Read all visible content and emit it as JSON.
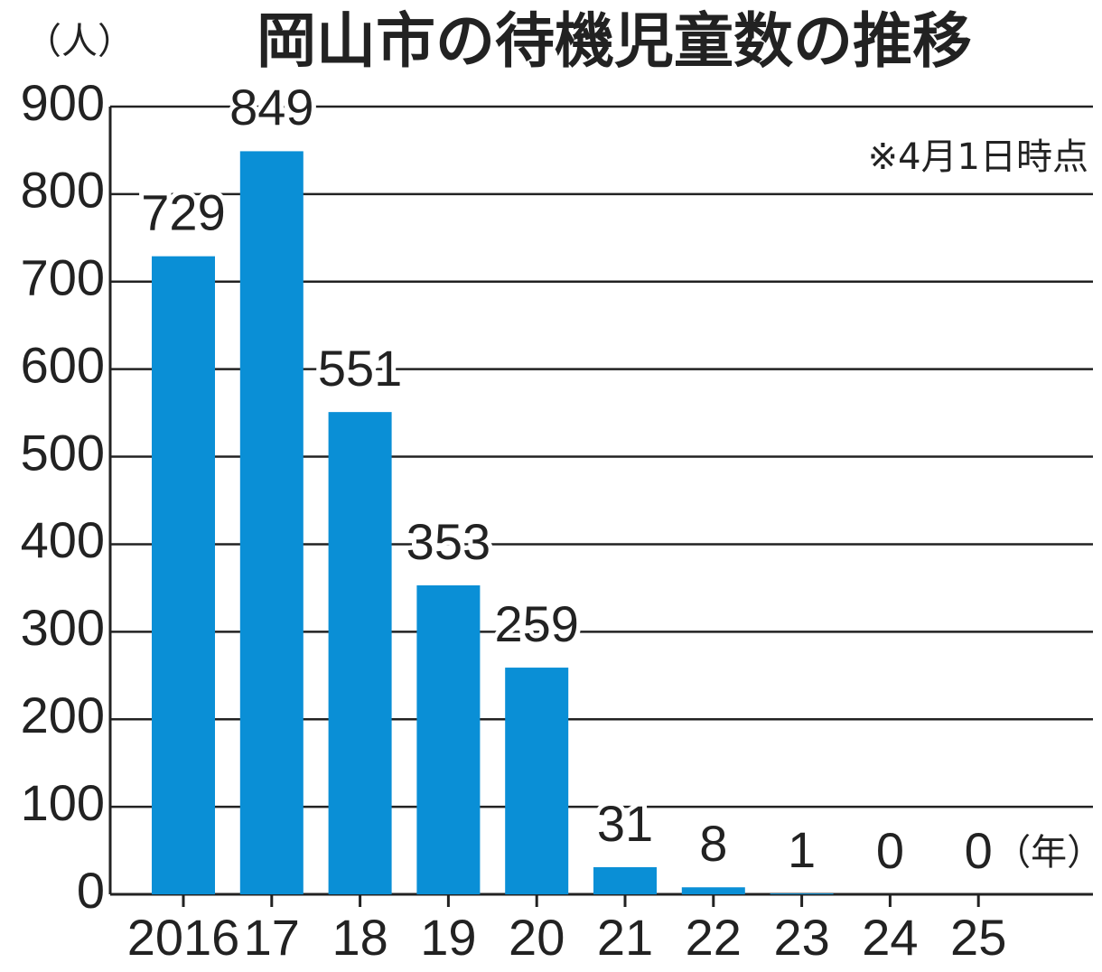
{
  "chart_data": {
    "type": "bar",
    "title": "岡山市の待機児童数の推移",
    "y_unit": "（人）",
    "x_unit": "（年）",
    "note": "※4月1日時点",
    "categories": [
      "2016",
      "17",
      "18",
      "19",
      "20",
      "21",
      "22",
      "23",
      "24",
      "25"
    ],
    "values": [
      729,
      849,
      551,
      353,
      259,
      31,
      8,
      1,
      0,
      0
    ],
    "color": "#0a8fd6",
    "ylim": [
      0,
      900
    ],
    "yticks": [
      0,
      100,
      200,
      300,
      400,
      500,
      600,
      700,
      800,
      900
    ],
    "grid": true
  }
}
